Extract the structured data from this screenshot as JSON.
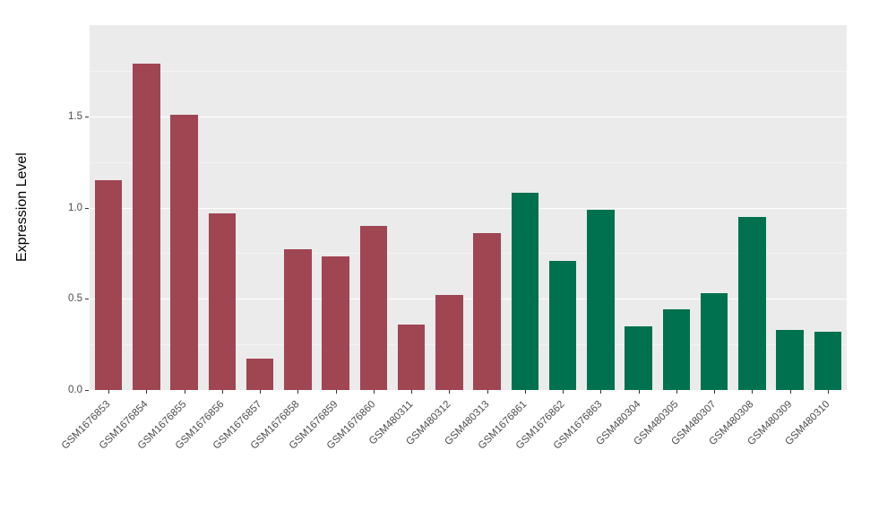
{
  "chart_data": {
    "type": "bar",
    "title": "",
    "xlabel": "",
    "ylabel": "Expression Level",
    "ylim": [
      0,
      2.0
    ],
    "yticks": [
      0.0,
      0.5,
      1.0,
      1.5
    ],
    "grid": true,
    "legend_position": "none",
    "plot_background": "#EBEBEB",
    "categories": [
      "GSM1676853",
      "GSM1676854",
      "GSM1676855",
      "GSM1676856",
      "GSM1676857",
      "GSM1676858",
      "GSM1676859",
      "GSM1676860",
      "GSM480311",
      "GSM480312",
      "GSM480313",
      "GSM1676861",
      "GSM1676862",
      "GSM1676863",
      "GSM480304",
      "GSM480305",
      "GSM480307",
      "GSM480308",
      "GSM480309",
      "GSM480310"
    ],
    "values": [
      1.15,
      1.79,
      1.51,
      0.97,
      0.17,
      0.77,
      0.73,
      0.9,
      0.36,
      0.52,
      0.86,
      1.08,
      0.71,
      0.99,
      0.35,
      0.44,
      0.53,
      0.95,
      0.33,
      0.32
    ],
    "groups": [
      "group1",
      "group1",
      "group1",
      "group1",
      "group1",
      "group1",
      "group1",
      "group1",
      "group1",
      "group1",
      "group1",
      "group2",
      "group2",
      "group2",
      "group2",
      "group2",
      "group2",
      "group2",
      "group2",
      "group2"
    ],
    "group_colors": {
      "group1": "#A04552",
      "group2": "#00714E"
    }
  }
}
